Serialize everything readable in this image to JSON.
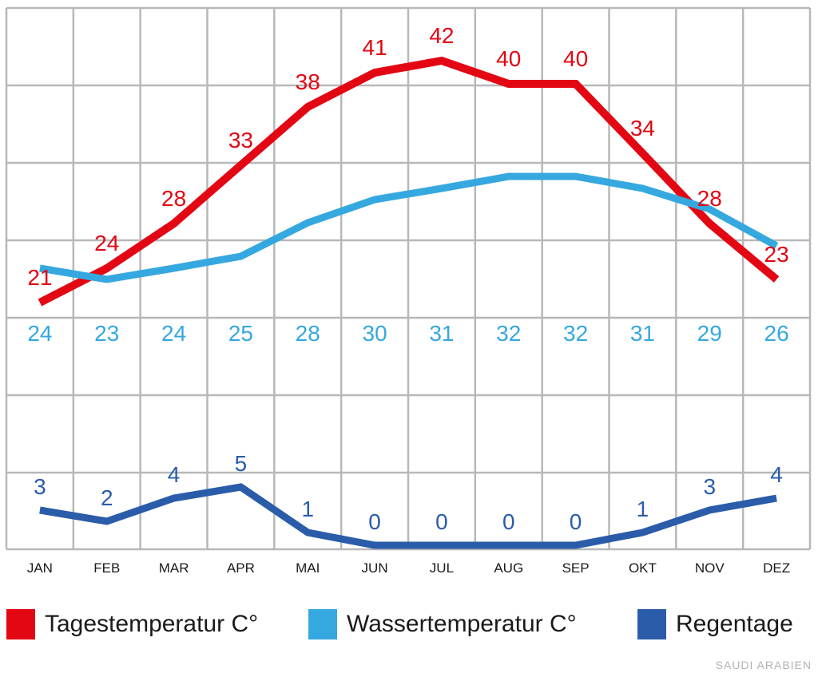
{
  "chart_data": {
    "type": "line",
    "categories": [
      "JAN",
      "FEB",
      "MAR",
      "APR",
      "MAI",
      "JUN",
      "JUL",
      "AUG",
      "SEP",
      "OKT",
      "NOV",
      "DEZ"
    ],
    "series": [
      {
        "name": "Tagestemperatur C°",
        "color": "#e30613",
        "values": [
          21,
          24,
          28,
          33,
          38,
          41,
          42,
          40,
          40,
          34,
          28,
          23
        ]
      },
      {
        "name": "Wassertemperatur C°",
        "color": "#35a8e0",
        "values": [
          24,
          23,
          24,
          25,
          28,
          30,
          31,
          32,
          32,
          31,
          29,
          26
        ]
      },
      {
        "name": "Regentage",
        "color": "#2a5caa",
        "values": [
          3,
          2,
          4,
          5,
          1,
          0,
          0,
          0,
          0,
          1,
          3,
          4
        ]
      }
    ],
    "grid": true,
    "legend_position": "bottom"
  },
  "legend": {
    "items": [
      {
        "label": "Tagestemperatur C°",
        "color": "#e30613"
      },
      {
        "label": "Wassertemperatur C°",
        "color": "#35a8e0"
      },
      {
        "label": "Regentage",
        "color": "#2a5caa"
      }
    ]
  },
  "source_label": "SAUDI ARABIEN"
}
